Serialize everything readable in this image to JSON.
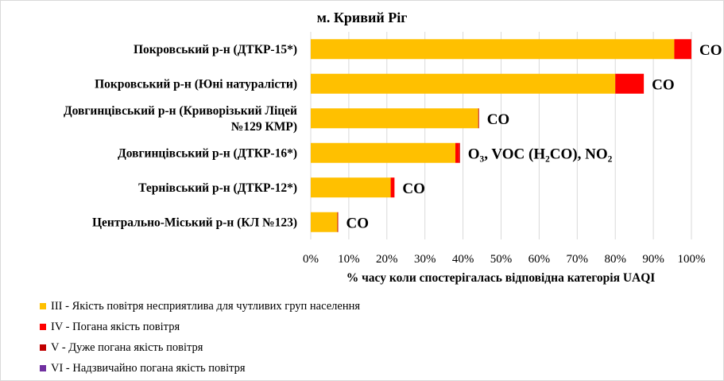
{
  "chart_data": {
    "type": "bar",
    "orientation": "horizontal",
    "stacked": true,
    "title": "м. Кривий  Ріг",
    "xlabel": "% часу коли спостерігалась відповідна категорія UAQI",
    "ylabel": "",
    "xlim": [
      0,
      100
    ],
    "x_ticks": [
      "0%",
      "10%",
      "20%",
      "30%",
      "40%",
      "50%",
      "60%",
      "70%",
      "80%",
      "90%",
      "100%"
    ],
    "grid": true,
    "legend_position": "bottom-left",
    "categories": [
      "Покровський р-н (ДТКР-15*)",
      "Покровський р-н (Юні натуралісти)",
      "Довгинцівський р-н (Криворізький Ліцей №129 КМР)",
      "Довгинцівський р-н (ДТКР-16*)",
      "Тернівський р-н (ДТКР-12*)",
      "Центрально-Міський р-н (КЛ №123)"
    ],
    "category_lines": [
      [
        "Покровський р-н (ДТКР-15*)"
      ],
      [
        "Покровський р-н (Юні натуралісти)"
      ],
      [
        "Довгинцівський р-н (Криворізький Ліцей",
        "№129 КМР)"
      ],
      [
        "Довгинцівський р-н (ДТКР-16*)"
      ],
      [
        "Тернівський р-н (ДТКР-12*)"
      ],
      [
        "Центрально-Міський р-н (КЛ №123)"
      ]
    ],
    "series": [
      {
        "name": "III - Якість повітря  несприятлива  для чутливих  груп  населення",
        "color": "#FFC000",
        "values": [
          95.5,
          80,
          44,
          38,
          21,
          7
        ]
      },
      {
        "name": "IV - Погана якість повітря",
        "color": "#FF0000",
        "values": [
          4.5,
          7.5,
          0,
          1,
          1,
          0
        ]
      },
      {
        "name": "V - Дуже погана  якість повітря",
        "color": "#C00000",
        "values": [
          0,
          0,
          0.2,
          0.2,
          0,
          0.2
        ]
      },
      {
        "name": "VI - Надзвичайно  погана якість повітря",
        "color": "#7030A0",
        "values": [
          0,
          0,
          0,
          0,
          0,
          0
        ]
      }
    ],
    "bar_annotations": [
      "CO",
      "CO",
      "CO",
      "O₃, VOC (H₂CO), NO₂",
      "CO",
      "CO"
    ]
  }
}
